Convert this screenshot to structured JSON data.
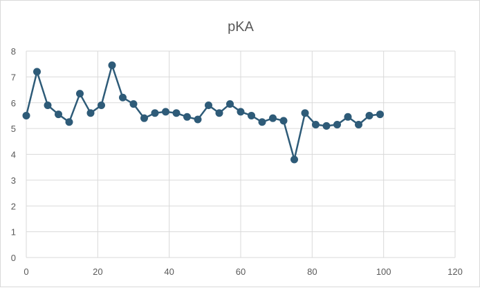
{
  "chart_data": {
    "type": "line",
    "title": "pKA",
    "xlabel": "",
    "ylabel": "",
    "xlim": [
      0,
      120
    ],
    "ylim": [
      0,
      8
    ],
    "x_ticks": [
      0,
      20,
      40,
      60,
      80,
      100,
      120
    ],
    "y_ticks": [
      0,
      1,
      2,
      3,
      4,
      5,
      6,
      7,
      8
    ],
    "grid": true,
    "legend": "none",
    "series_color": "#2e5b78",
    "series": [
      {
        "x": [
          0,
          3,
          6,
          9,
          12,
          15,
          18,
          21,
          24,
          27,
          30,
          33,
          36,
          39,
          42,
          45,
          48,
          51,
          54,
          57,
          60,
          63,
          66,
          69,
          72,
          75,
          78,
          81,
          84,
          87,
          90,
          93,
          96,
          99
        ],
        "y": [
          5.5,
          7.2,
          5.9,
          5.55,
          5.25,
          6.35,
          5.6,
          5.9,
          7.45,
          6.2,
          5.95,
          5.4,
          5.6,
          5.65,
          5.6,
          5.45,
          5.35,
          5.9,
          5.6,
          5.95,
          5.65,
          5.5,
          5.25,
          5.4,
          5.3,
          3.8,
          5.6,
          5.15,
          5.1,
          5.15,
          5.45,
          5.15,
          5.5,
          5.55
        ]
      }
    ]
  }
}
